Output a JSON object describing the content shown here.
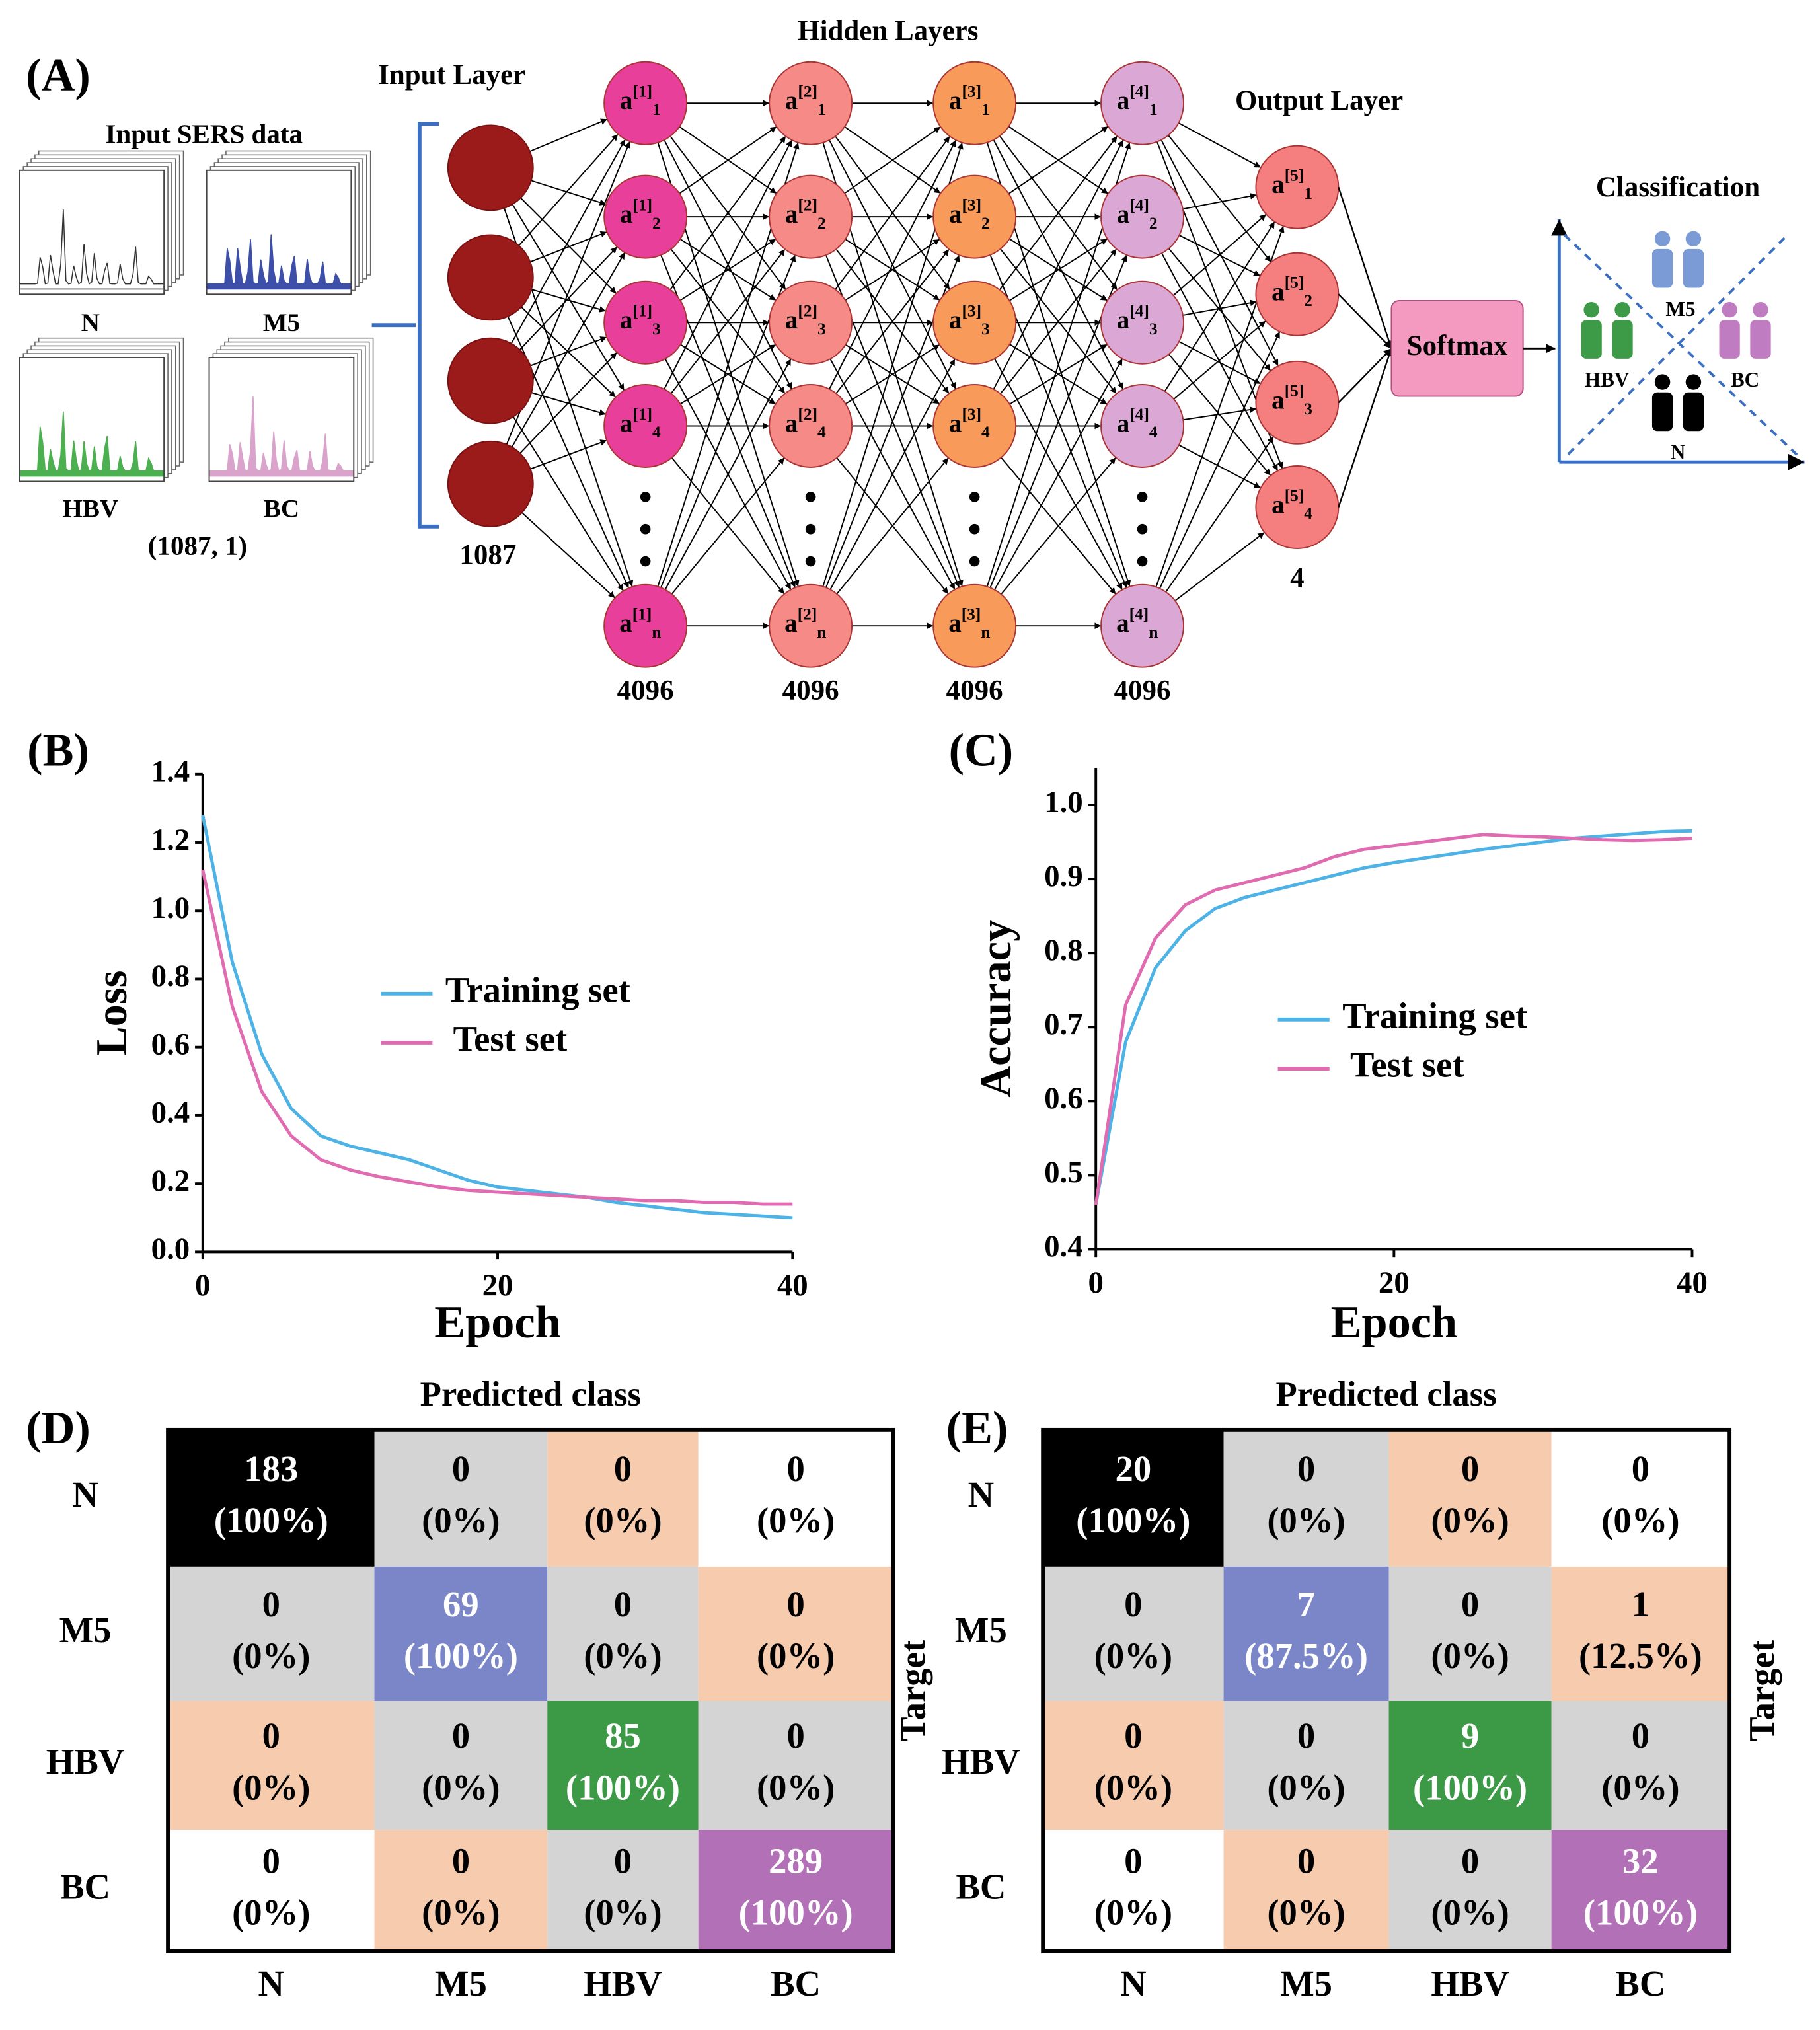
{
  "diagram": {
    "label": "(A)",
    "input": {
      "title": "Input SERS data",
      "classes": [
        "N",
        "M5",
        "HBV",
        "BC"
      ],
      "shape": "(1087, 1)"
    },
    "input_layer": {
      "title": "Input Layer",
      "units": "1087"
    },
    "hidden_title": "Hidden Layers",
    "hidden_layers": [
      {
        "symbol": "a",
        "superscript": "[1]",
        "subscripts": [
          "1",
          "2",
          "3",
          "4",
          "n"
        ],
        "units": "4096"
      },
      {
        "symbol": "a",
        "superscript": "[2]",
        "subscripts": [
          "1",
          "2",
          "3",
          "4",
          "n"
        ],
        "units": "4096"
      },
      {
        "symbol": "a",
        "superscript": "[3]",
        "subscripts": [
          "1",
          "2",
          "3",
          "4",
          "n"
        ],
        "units": "4096"
      },
      {
        "symbol": "a",
        "superscript": "[4]",
        "subscripts": [
          "1",
          "2",
          "3",
          "4",
          "n"
        ],
        "units": "4096"
      }
    ],
    "output_layer": {
      "title": "Output Layer",
      "symbol": "a",
      "superscript": "[5]",
      "subscripts": [
        "1",
        "2",
        "3",
        "4"
      ],
      "units": "4"
    },
    "softmax": "Softmax",
    "classification": {
      "title": "Classification",
      "classes": [
        "M5",
        "HBV",
        "BC",
        "N"
      ]
    }
  },
  "chart_data": [
    {
      "type": "line",
      "label": "(B)",
      "xlabel": "Epoch",
      "ylabel": "Loss",
      "xlim": [
        0,
        40
      ],
      "ylim": [
        0,
        1.4
      ],
      "xticks": [
        0,
        20,
        40
      ],
      "yticks": [
        {
          "value": 0,
          "label": "0.0"
        },
        0.2,
        0.4,
        0.6,
        0.8,
        {
          "value": 1,
          "label": "1.0"
        },
        1.2,
        1.4
      ],
      "x": [
        0,
        2,
        4,
        6,
        8,
        10,
        12,
        14,
        16,
        18,
        20,
        22,
        24,
        26,
        28,
        30,
        32,
        34,
        36,
        38,
        40
      ],
      "series": [
        {
          "name": "Training set",
          "color": "#4db3e6",
          "values": [
            1.28,
            0.85,
            0.58,
            0.42,
            0.34,
            0.31,
            0.29,
            0.27,
            0.24,
            0.21,
            0.19,
            0.18,
            0.17,
            0.16,
            0.145,
            0.135,
            0.125,
            0.115,
            0.11,
            0.105,
            0.1
          ]
        },
        {
          "name": "Test set",
          "color": "#e06bb0",
          "values": [
            1.12,
            0.72,
            0.47,
            0.34,
            0.27,
            0.24,
            0.22,
            0.205,
            0.19,
            0.18,
            0.175,
            0.17,
            0.165,
            0.16,
            0.155,
            0.15,
            0.15,
            0.145,
            0.145,
            0.14,
            0.14
          ]
        }
      ]
    },
    {
      "type": "line",
      "label": "(C)",
      "xlabel": "Epoch",
      "ylabel": "Accuracy",
      "xlim": [
        0,
        40
      ],
      "ylim": [
        0.4,
        1.05
      ],
      "xticks": [
        0,
        20,
        40
      ],
      "yticks": [
        0.4,
        0.5,
        0.6,
        0.7,
        0.8,
        0.9,
        {
          "value": 1,
          "label": "1.0"
        }
      ],
      "x": [
        0,
        2,
        4,
        6,
        8,
        10,
        12,
        14,
        16,
        18,
        20,
        22,
        24,
        26,
        28,
        30,
        32,
        34,
        36,
        38,
        40
      ],
      "series": [
        {
          "name": "Training set",
          "color": "#4db3e6",
          "values": [
            0.46,
            0.68,
            0.78,
            0.83,
            0.86,
            0.875,
            0.885,
            0.895,
            0.905,
            0.915,
            0.922,
            0.928,
            0.934,
            0.94,
            0.945,
            0.95,
            0.955,
            0.958,
            0.961,
            0.964,
            0.965
          ]
        },
        {
          "name": "Test set",
          "color": "#e06bb0",
          "values": [
            0.46,
            0.73,
            0.82,
            0.865,
            0.885,
            0.895,
            0.905,
            0.915,
            0.93,
            0.94,
            0.945,
            0.95,
            0.955,
            0.96,
            0.958,
            0.957,
            0.955,
            0.953,
            0.952,
            0.953,
            0.955
          ]
        }
      ]
    }
  ],
  "matrices": [
    {
      "label": "(D)",
      "title": "Predicted class",
      "side_label": "Target",
      "rows": [
        "N",
        "M5",
        "HBV",
        "BC"
      ],
      "cols": [
        "N",
        "M5",
        "HBV",
        "BC"
      ],
      "counts": [
        [
          183,
          0,
          0,
          0
        ],
        [
          0,
          69,
          0,
          0
        ],
        [
          0,
          0,
          85,
          0
        ],
        [
          0,
          0,
          0,
          289
        ]
      ],
      "percents": [
        [
          "(100%)",
          "(0%)",
          "(0%)",
          "(0%)"
        ],
        [
          "(0%)",
          "(100%)",
          "(0%)",
          "(0%)"
        ],
        [
          "(0%)",
          "(0%)",
          "(100%)",
          "(0%)"
        ],
        [
          "(0%)",
          "(0%)",
          "(0%)",
          "(100%)"
        ]
      ],
      "cell_colors": [
        [
          "#000000",
          "#d4d4d4",
          "#f7cbae",
          "#ffffff"
        ],
        [
          "#d4d4d4",
          "#7a86c8",
          "#d4d4d4",
          "#f7cbae"
        ],
        [
          "#f7cbae",
          "#d4d4d4",
          "#3c9a46",
          "#d4d4d4"
        ],
        [
          "#ffffff",
          "#f7cbae",
          "#d4d4d4",
          "#b270b6"
        ]
      ]
    },
    {
      "label": "(E)",
      "title": "Predicted class",
      "side_label": "Target",
      "rows": [
        "N",
        "M5",
        "HBV",
        "BC"
      ],
      "cols": [
        "N",
        "M5",
        "HBV",
        "BC"
      ],
      "counts": [
        [
          20,
          0,
          0,
          0
        ],
        [
          0,
          7,
          0,
          1
        ],
        [
          0,
          0,
          9,
          0
        ],
        [
          0,
          0,
          0,
          32
        ]
      ],
      "percents": [
        [
          "(100%)",
          "(0%)",
          "(0%)",
          "(0%)"
        ],
        [
          "(0%)",
          "(87.5%)",
          "(0%)",
          "(12.5%)"
        ],
        [
          "(0%)",
          "(0%)",
          "(100%)",
          "(0%)"
        ],
        [
          "(0%)",
          "(0%)",
          "(0%)",
          "(100%)"
        ]
      ],
      "cell_colors": [
        [
          "#000000",
          "#d4d4d4",
          "#f7cbae",
          "#ffffff"
        ],
        [
          "#d4d4d4",
          "#7a86c8",
          "#d4d4d4",
          "#f7cbae"
        ],
        [
          "#f7cbae",
          "#d4d4d4",
          "#3c9a46",
          "#d4d4d4"
        ],
        [
          "#ffffff",
          "#f7cbae",
          "#d4d4d4",
          "#b270b6"
        ]
      ]
    }
  ]
}
